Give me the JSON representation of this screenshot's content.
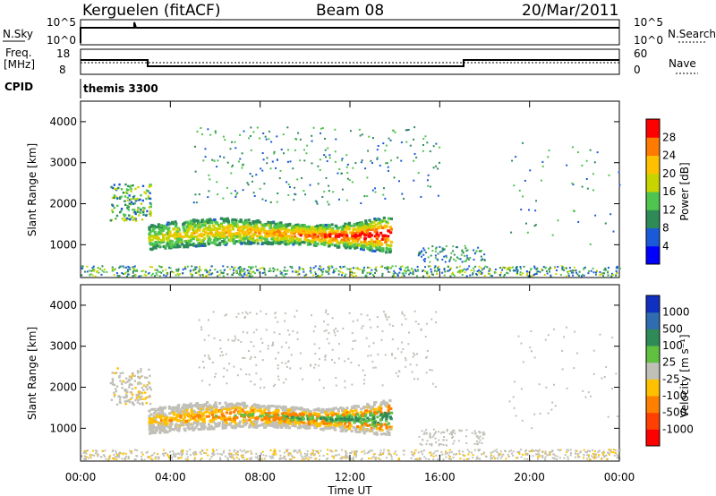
{
  "header": {
    "station": "Kerguelen (fitACF)",
    "beam": "Beam 08",
    "date": "20/Mar/2011"
  },
  "panels": {
    "nsky": {
      "left_label": "N.Sky",
      "right_label": "N.Search",
      "left_ticks": [
        "10^5",
        "10^0"
      ],
      "right_ticks": [
        "10^5",
        "10^0"
      ]
    },
    "freq": {
      "left_label_1": "Freq.",
      "left_label_2": "[MHz]",
      "right_label": "Nave",
      "left_ticks": [
        "18",
        "8"
      ],
      "right_ticks": [
        "60",
        "0"
      ]
    },
    "cpid": {
      "left_label": "CPID",
      "mode": "themis 3300"
    }
  },
  "chart_data": [
    {
      "type": "heatmap",
      "name_label": "Power [dB]",
      "ylabel": "Slant Range [km]",
      "ylim": [
        200,
        4500
      ],
      "yticks": [
        1000,
        2000,
        3000,
        4000
      ],
      "xlim": [
        0,
        24
      ],
      "colorbar": {
        "labels": [
          "4",
          "8",
          "12",
          "16",
          "20",
          "24",
          "28"
        ],
        "colors": [
          "#0000ff",
          "#1a5ad8",
          "#2e8b57",
          "#4fc44f",
          "#c8d400",
          "#ffc000",
          "#ff7a00",
          "#ff0000"
        ]
      }
    },
    {
      "type": "heatmap",
      "name_label": "Velocity [m s⁻¹]",
      "ylabel": "Slant Range [km]",
      "ylim": [
        200,
        4500
      ],
      "yticks": [
        1000,
        2000,
        3000,
        4000
      ],
      "xlim": [
        0,
        24
      ],
      "colorbar": {
        "labels": [
          "1000",
          "500",
          "100",
          "25",
          "-25",
          "-100",
          "-500",
          "-1000"
        ],
        "colors": [
          "#1030c0",
          "#2f6cb0",
          "#2e8b57",
          "#60c040",
          "#c0c0b8",
          "#ffc000",
          "#ff8000",
          "#ff4000",
          "#ff0000"
        ]
      }
    }
  ],
  "time_axis": {
    "label": "Time UT",
    "ticks": [
      "00:00",
      "04:00",
      "08:00",
      "12:00",
      "16:00",
      "20:00",
      "00:00"
    ]
  }
}
